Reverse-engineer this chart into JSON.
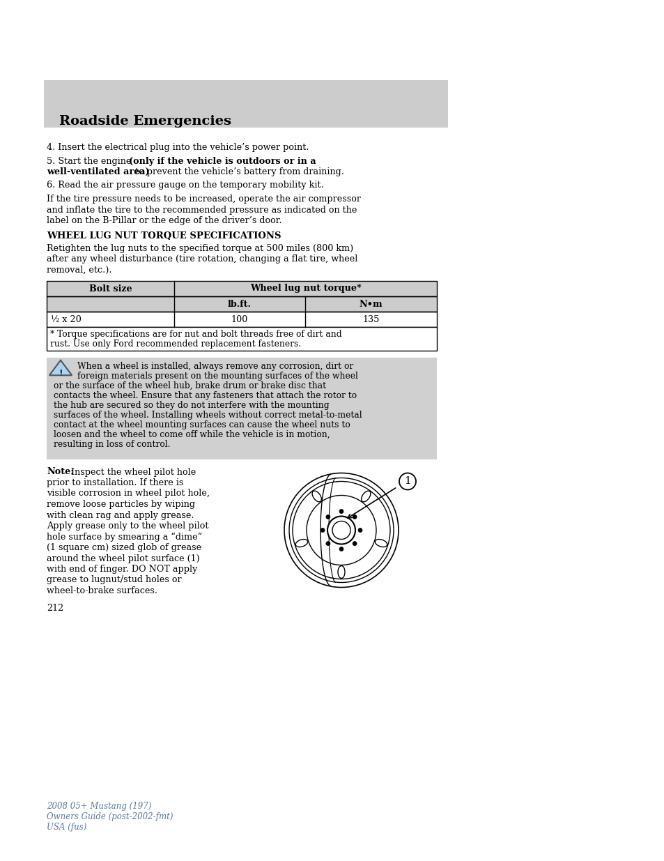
{
  "page_bg": "#ffffff",
  "header_bg": "#cccccc",
  "header_text": "Roadside Emergencies",
  "body_text_color": "#000000",
  "warning_bg": "#d3d3d3",
  "table_header_bg": "#cccccc",
  "table_border_color": "#000000",
  "footer_text_color": "#5a7a9a",
  "para4": "4. Insert the electrical plug into the vehicle’s power point.",
  "para5_normal": "5. Start the engine ",
  "para5_bold_1": "(only if the vehicle is outdoors or in a",
  "para5_bold_2": "well-ventilated area)",
  "para5_end": " to prevent the vehicle’s battery from draining.",
  "para6": "6. Read the air pressure gauge on the temporary mobility kit.",
  "para_tire_1": "If the tire pressure needs to be increased, operate the air compressor",
  "para_tire_2": "and inflate the tire to the recommended pressure as indicated on the",
  "para_tire_3": "label on the B-Pillar or the edge of the driver’s door.",
  "section_title": "WHEEL LUG NUT TORQUE SPECIFICATIONS",
  "retighten_1": "Retighten the lug nuts to the specified torque at 500 miles (800 km)",
  "retighten_2": "after any wheel disturbance (tire rotation, changing a flat tire, wheel",
  "retighten_3": "removal, etc.).",
  "table_col1_header": "Bolt size",
  "table_col2_header": "Wheel lug nut torque*",
  "table_subh1": "lb.ft.",
  "table_subh2": "N•m",
  "table_row1_col1": "½ x 20",
  "table_row1_col2": "100",
  "table_row1_col3": "135",
  "table_fn1": "* Torque specifications are for nut and bolt threads free of dirt and",
  "table_fn2": "rust. Use only Ford recommended replacement fasteners.",
  "warning_lines": [
    "When a wheel is installed, always remove any corrosion, dirt or",
    "foreign materials present on the mounting surfaces of the wheel",
    "or the surface of the wheel hub, brake drum or brake disc that",
    "contacts the wheel. Ensure that any fasteners that attach the rotor to",
    "the hub are secured so they do not interfere with the mounting",
    "surfaces of the wheel. Installing wheels without correct metal-to-metal",
    "contact at the wheel mounting surfaces can cause the wheel nuts to",
    "loosen and the wheel to come off while the vehicle is in motion,",
    "resulting in loss of control."
  ],
  "note_bold": "Note:",
  "note_lines": [
    " Inspect the wheel pilot hole",
    "prior to installation. If there is",
    "visible corrosion in wheel pilot hole,",
    "remove loose particles by wiping",
    "with clean rag and apply grease.",
    "Apply grease only to the wheel pilot",
    "hole surface by smearing a “dime”",
    "(1 square cm) sized glob of grease",
    "around the wheel pilot surface (1)",
    "with end of finger. DO NOT apply",
    "grease to lugnut/stud holes or",
    "wheel-to-brake surfaces."
  ],
  "page_number": "212",
  "footer_line1": "2008 05+ Mustang (197)",
  "footer_line2": "Owners Guide (post-2002-fmt)",
  "footer_line3": "USA (fus)"
}
